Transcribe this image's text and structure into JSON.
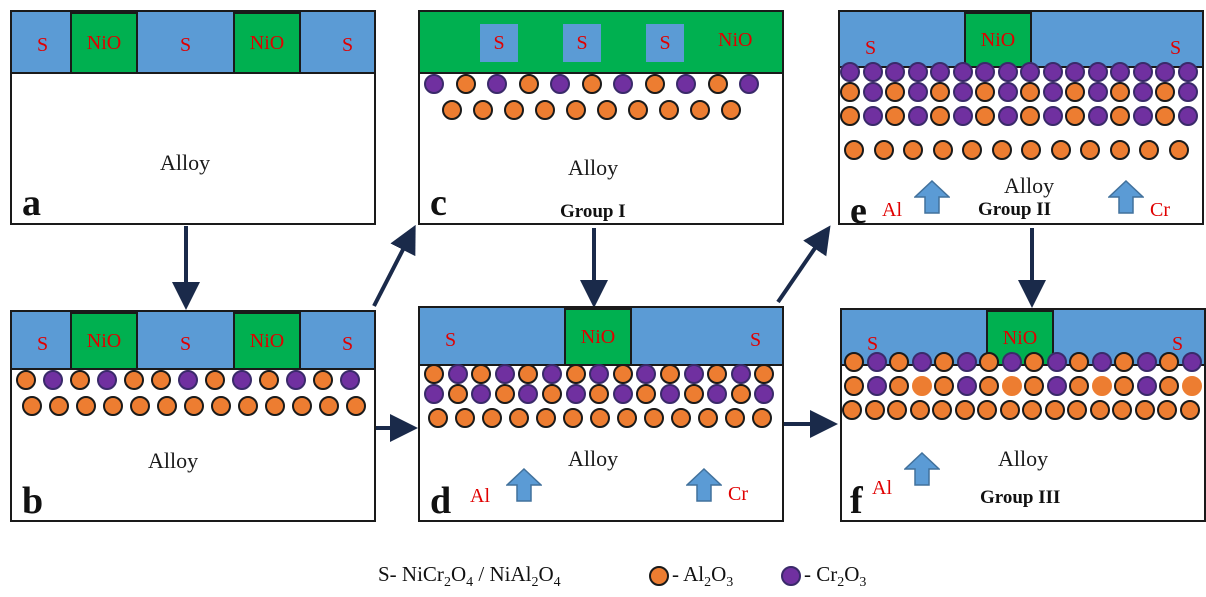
{
  "labels": {
    "s": "S",
    "nio": "NiO",
    "alloy": "Alloy",
    "al": "Al",
    "cr": "Cr"
  },
  "panels": {
    "a": {
      "letter": "a"
    },
    "b": {
      "letter": "b"
    },
    "c": {
      "letter": "c",
      "group": "Group I"
    },
    "d": {
      "letter": "d"
    },
    "e": {
      "letter": "e",
      "group": "Group II"
    },
    "f": {
      "letter": "f",
      "group": "Group III"
    }
  },
  "legend": {
    "s_prefix": "S- NiCr",
    "s_sub1": "2",
    "s_mid1": "O",
    "s_sub2": "4",
    "s_mid2": " / NiAl",
    "s_sub3": "2",
    "s_mid3": "O",
    "s_sub4": "4",
    "al_prefix": "- Al",
    "al_sub1": "2",
    "al_mid": "O",
    "al_sub2": "3",
    "cr_prefix": "- Cr",
    "cr_sub1": "2",
    "cr_mid": "O",
    "cr_sub2": "3"
  },
  "colors": {
    "spinel_band": "#5b9bd5",
    "nio": "#00b050",
    "al2o3": "#ed7d31",
    "cr2o3": "#7030a0",
    "label_red": "#e00000"
  }
}
